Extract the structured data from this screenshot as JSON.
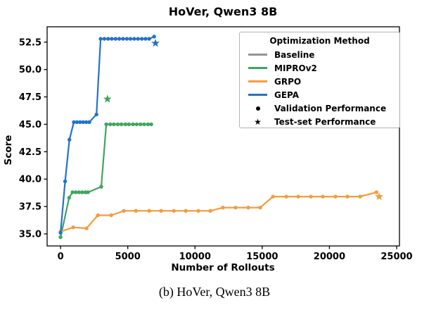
{
  "figure": {
    "title": "HoVer, Qwen3 8B",
    "caption": "(b) HoVer, Qwen3 8B"
  },
  "axes": {
    "xlabel": "Number of Rollouts",
    "ylabel": "Score"
  },
  "legend": {
    "title": "Optimization Method",
    "items": [
      {
        "type": "line",
        "color": "#959595",
        "label": "Baseline"
      },
      {
        "type": "line",
        "color": "#3fa45e",
        "label": "MIPROv2"
      },
      {
        "type": "line",
        "color": "#f59b3f",
        "label": "GRPO"
      },
      {
        "type": "line",
        "color": "#2372cc",
        "label": "GEPA"
      },
      {
        "type": "dot",
        "color": "#000000",
        "label": "Validation Performance"
      },
      {
        "type": "star",
        "color": "#000000",
        "label": "Test-set Performance"
      }
    ]
  },
  "chart_data": {
    "type": "line",
    "title": "HoVer, Qwen3 8B",
    "xlabel": "Number of Rollouts",
    "ylabel": "Score",
    "xlim": [
      -1000,
      25210
    ],
    "ylim": [
      33.9,
      53.9
    ],
    "x_ticks": [
      0,
      5000,
      10000,
      15000,
      20000,
      25000
    ],
    "y_ticks": [
      35.0,
      37.5,
      40.0,
      42.5,
      45.0,
      47.5,
      50.0,
      52.5
    ],
    "grid": false,
    "legend_position": "upper right",
    "marker_note": "dots = validation performance, star = test-set performance",
    "series": [
      {
        "name": "Baseline",
        "color": "#959595",
        "validation": [
          [
            0,
            35.2
          ]
        ],
        "test": null
      },
      {
        "name": "MIPROv2",
        "color": "#3fa45e",
        "validation": [
          [
            0,
            34.7
          ],
          [
            640,
            38.3
          ],
          [
            890,
            38.8
          ],
          [
            1130,
            38.8
          ],
          [
            1370,
            38.8
          ],
          [
            1610,
            38.8
          ],
          [
            1850,
            38.8
          ],
          [
            2040,
            38.8
          ],
          [
            3030,
            39.3
          ],
          [
            3400,
            45.0
          ],
          [
            3700,
            45.0
          ],
          [
            3960,
            45.0
          ],
          [
            4250,
            45.0
          ],
          [
            4530,
            45.0
          ],
          [
            4830,
            45.0
          ],
          [
            5090,
            45.0
          ],
          [
            5390,
            45.0
          ],
          [
            5660,
            45.0
          ],
          [
            5940,
            45.0
          ],
          [
            6220,
            45.0
          ],
          [
            6500,
            45.0
          ],
          [
            6750,
            45.0
          ]
        ],
        "test": [
          3490,
          47.3
        ]
      },
      {
        "name": "GRPO",
        "color": "#f59b3f",
        "validation": [
          [
            0,
            35.2
          ],
          [
            940,
            35.6
          ],
          [
            1930,
            35.5
          ],
          [
            2770,
            36.7
          ],
          [
            3770,
            36.7
          ],
          [
            4710,
            37.1
          ],
          [
            5600,
            37.1
          ],
          [
            6590,
            37.1
          ],
          [
            7480,
            37.1
          ],
          [
            8420,
            37.1
          ],
          [
            9310,
            37.1
          ],
          [
            10250,
            37.1
          ],
          [
            11140,
            37.1
          ],
          [
            12080,
            37.4
          ],
          [
            13020,
            37.4
          ],
          [
            13960,
            37.4
          ],
          [
            14850,
            37.4
          ],
          [
            15800,
            38.4
          ],
          [
            16790,
            38.4
          ],
          [
            17680,
            38.4
          ],
          [
            18620,
            38.4
          ],
          [
            19510,
            38.4
          ],
          [
            20450,
            38.4
          ],
          [
            21340,
            38.4
          ],
          [
            22280,
            38.4
          ],
          [
            23500,
            38.8
          ]
        ],
        "test": [
          23700,
          38.4
        ]
      },
      {
        "name": "GEPA",
        "color": "#2372cc",
        "validation": [
          [
            0,
            35.1
          ],
          [
            340,
            39.8
          ],
          [
            660,
            43.6
          ],
          [
            990,
            45.2
          ],
          [
            1220,
            45.2
          ],
          [
            1450,
            45.2
          ],
          [
            1680,
            45.2
          ],
          [
            1910,
            45.2
          ],
          [
            2140,
            45.2
          ],
          [
            2670,
            45.9
          ],
          [
            2980,
            52.8
          ],
          [
            3260,
            52.8
          ],
          [
            3540,
            52.8
          ],
          [
            3810,
            52.8
          ],
          [
            4090,
            52.8
          ],
          [
            4370,
            52.8
          ],
          [
            4650,
            52.8
          ],
          [
            4930,
            52.8
          ],
          [
            5200,
            52.8
          ],
          [
            5480,
            52.8
          ],
          [
            5760,
            52.8
          ],
          [
            6040,
            52.8
          ],
          [
            6320,
            52.8
          ],
          [
            6590,
            52.8
          ],
          [
            6960,
            53.0
          ]
        ],
        "test": [
          7060,
          52.4
        ]
      }
    ]
  }
}
